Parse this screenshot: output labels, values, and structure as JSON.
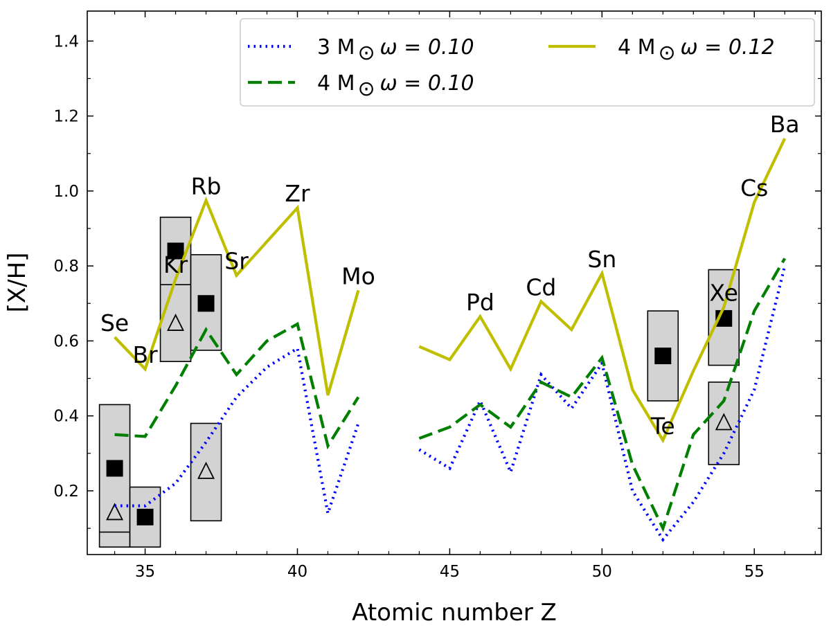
{
  "chart_data": {
    "type": "line",
    "title": "",
    "xlabel": "Atomic number Z",
    "ylabel": "[X/H]",
    "xlim": [
      33.1,
      57.2
    ],
    "ylim": [
      0.03,
      1.48
    ],
    "xticks": [
      35,
      40,
      45,
      50,
      55
    ],
    "yticks": [
      0.2,
      0.4,
      0.6,
      0.8,
      1.0,
      1.2,
      1.4
    ],
    "ytick_labels": [
      "0.2",
      "0.4",
      "0.6",
      "0.8",
      "1.0",
      "1.2",
      "1.4"
    ],
    "series": [
      {
        "name": "3 M⊙ ω = 0.10",
        "legend_main": "3 M",
        "legend_omega": "ω = 0.10",
        "color": "#0000ff",
        "style": "dotted",
        "segments": [
          [
            [
              34,
              0.16
            ],
            [
              35,
              0.16
            ],
            [
              36,
              0.22
            ],
            [
              37,
              0.33
            ],
            [
              38,
              0.45
            ],
            [
              39,
              0.53
            ],
            [
              40,
              0.58
            ],
            [
              41,
              0.14
            ],
            [
              42,
              0.38
            ]
          ],
          [
            [
              44,
              0.31
            ],
            [
              45,
              0.26
            ],
            [
              46,
              0.44
            ],
            [
              47,
              0.25
            ],
            [
              48,
              0.51
            ],
            [
              49,
              0.42
            ],
            [
              50,
              0.54
            ],
            [
              51,
              0.2
            ],
            [
              52,
              0.07
            ],
            [
              53,
              0.17
            ],
            [
              54,
              0.3
            ],
            [
              55,
              0.47
            ],
            [
              56,
              0.8
            ]
          ]
        ]
      },
      {
        "name": "4 M⊙ ω = 0.10",
        "legend_main": "4 M",
        "legend_omega": "ω = 0.10",
        "color": "#007f00",
        "style": "dashed",
        "segments": [
          [
            [
              34,
              0.35
            ],
            [
              35,
              0.345
            ],
            [
              36,
              0.48
            ],
            [
              37,
              0.63
            ],
            [
              38,
              0.51
            ],
            [
              39,
              0.6
            ],
            [
              40,
              0.645
            ],
            [
              41,
              0.32
            ],
            [
              42,
              0.45
            ]
          ],
          [
            [
              44,
              0.34
            ],
            [
              45,
              0.37
            ],
            [
              46,
              0.43
            ],
            [
              47,
              0.37
            ],
            [
              48,
              0.49
            ],
            [
              49,
              0.45
            ],
            [
              50,
              0.555
            ],
            [
              51,
              0.27
            ],
            [
              52,
              0.1
            ],
            [
              53,
              0.35
            ],
            [
              54,
              0.44
            ],
            [
              55,
              0.68
            ],
            [
              56,
              0.82
            ]
          ]
        ]
      },
      {
        "name": "4 M⊙ ω = 0.12",
        "legend_main": "4 M",
        "legend_omega": "ω = 0.12",
        "color": "#bfbf00",
        "style": "solid",
        "segments": [
          [
            [
              34,
              0.61
            ],
            [
              35,
              0.525
            ],
            [
              36,
              0.765
            ],
            [
              37,
              0.975
            ],
            [
              38,
              0.775
            ],
            [
              39,
              0.865
            ],
            [
              40,
              0.955
            ],
            [
              41,
              0.455
            ],
            [
              42,
              0.735
            ]
          ],
          [
            [
              44,
              0.585
            ],
            [
              45,
              0.55
            ],
            [
              46,
              0.665
            ],
            [
              47,
              0.525
            ],
            [
              48,
              0.705
            ],
            [
              49,
              0.63
            ],
            [
              50,
              0.78
            ],
            [
              51,
              0.47
            ],
            [
              52,
              0.335
            ],
            [
              53,
              0.52
            ],
            [
              54,
              0.69
            ],
            [
              55,
              0.97
            ],
            [
              56,
              1.14
            ]
          ]
        ]
      }
    ],
    "observations": [
      {
        "z": 34,
        "low": 0.05,
        "high": 0.43,
        "mid": 0.09,
        "square": 0.26,
        "triangle": 0.14
      },
      {
        "z": 35,
        "low": 0.05,
        "high": 0.21,
        "square": 0.13
      },
      {
        "z": 36,
        "low": 0.545,
        "high": 0.93,
        "mid": 0.75,
        "square": 0.84,
        "triangle": 0.645
      },
      {
        "z": 37,
        "low": 0.575,
        "high": 0.83,
        "square": 0.7
      },
      {
        "z": 37,
        "low": 0.12,
        "high": 0.38,
        "triangle": 0.25
      },
      {
        "z": 52,
        "low": 0.44,
        "high": 0.68,
        "square": 0.56
      },
      {
        "z": 54,
        "low": 0.535,
        "high": 0.79,
        "square": 0.66
      },
      {
        "z": 54,
        "low": 0.27,
        "high": 0.49,
        "triangle": 0.38
      }
    ],
    "element_labels": [
      {
        "text": "Se",
        "z": 34,
        "y": 0.61
      },
      {
        "text": "Br",
        "z": 35,
        "y": 0.525
      },
      {
        "text": "Kr",
        "z": 36,
        "y": 0.765
      },
      {
        "text": "Rb",
        "z": 37,
        "y": 0.975
      },
      {
        "text": "Sr",
        "z": 38,
        "y": 0.775
      },
      {
        "text": "Zr",
        "z": 40,
        "y": 0.955
      },
      {
        "text": "Mo",
        "z": 42,
        "y": 0.735
      },
      {
        "text": "Pd",
        "z": 46,
        "y": 0.665
      },
      {
        "text": "Cd",
        "z": 48,
        "y": 0.705
      },
      {
        "text": "Sn",
        "z": 50,
        "y": 0.78
      },
      {
        "text": "Te",
        "z": 52,
        "y": 0.335
      },
      {
        "text": "Xe",
        "z": 54,
        "y": 0.69
      },
      {
        "text": "Cs",
        "z": 55,
        "y": 0.97
      },
      {
        "text": "Ba",
        "z": 56,
        "y": 1.14
      }
    ],
    "legend": {
      "position": "upper right",
      "sun_symbol": "⊙"
    }
  }
}
